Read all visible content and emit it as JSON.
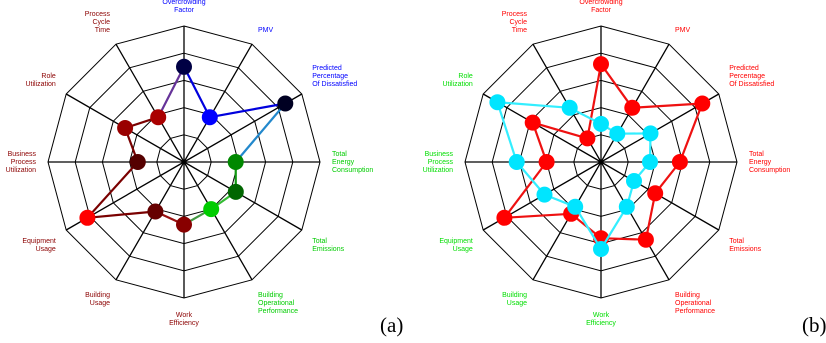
{
  "panels": [
    {
      "panel_label": "(a)",
      "chart_data": {
        "type": "radar",
        "title": "",
        "axes": [
          {
            "label": "Overcrowding Factor",
            "color": "#0000ff"
          },
          {
            "label": "PMV",
            "color": "#0000ff"
          },
          {
            "label": "Predicted Percentage Of Dissatisfied",
            "color": "#0000ff"
          },
          {
            "label": "Total Energy Consumption",
            "color": "#00cc00"
          },
          {
            "label": "Total Emissions",
            "color": "#00cc00"
          },
          {
            "label": "Building Operational Performance",
            "color": "#00cc00"
          },
          {
            "label": "Work Efficiency",
            "color": "#8b0000"
          },
          {
            "label": "Building Usage",
            "color": "#8b0000"
          },
          {
            "label": "Equipment Usage",
            "color": "#8b0000"
          },
          {
            "label": "Business Process Utilization",
            "color": "#8b0000"
          },
          {
            "label": "Role Utilization",
            "color": "#8b0000"
          },
          {
            "label": "Process Cycle Time",
            "color": "#8b0000"
          }
        ],
        "rings": 5,
        "range": [
          0,
          5
        ],
        "grid": true,
        "series": [
          {
            "values": [
              3.5,
              1.9,
              4.3,
              1.9,
              2.2,
              2.0,
              2.3,
              2.1,
              4.1,
              1.7,
              2.5,
              1.9
            ],
            "point_colors": [
              "#000044",
              "#0000ff",
              "#000022",
              "#008800",
              "#006600",
              "#00cc00",
              "#880000",
              "#660000",
              "#ff0000",
              "#550000",
              "#990000",
              "#aa0000"
            ],
            "line_colors": [
              "#0000dd",
              "#0000dd",
              "#2288cc",
              "#119911",
              "#33bb33",
              "#449944",
              "#991111",
              "#7a0000",
              "#7a0000",
              "#7a0000",
              "#7a0000",
              "#663399"
            ]
          }
        ]
      }
    },
    {
      "panel_label": "(b)",
      "chart_data": {
        "type": "radar",
        "title": "",
        "axes": [
          {
            "label": "Overcrowding Factor",
            "color": "#ff0000"
          },
          {
            "label": "PMV",
            "color": "#ff0000"
          },
          {
            "label": "Predicted Percentage Of Dissatisfied",
            "color": "#ff0000"
          },
          {
            "label": "Total Energy Consumption",
            "color": "#ff0000"
          },
          {
            "label": "Total Emissions",
            "color": "#ff0000"
          },
          {
            "label": "Building Operational Performance",
            "color": "#ff0000"
          },
          {
            "label": "Work Efficiency",
            "color": "#00dd00"
          },
          {
            "label": "Building Usage",
            "color": "#00dd00"
          },
          {
            "label": "Equipment Usage",
            "color": "#00dd00"
          },
          {
            "label": "Business Process Utilization",
            "color": "#00dd00"
          },
          {
            "label": "Role Utilization",
            "color": "#00dd00"
          },
          {
            "label": "Process Cycle Time",
            "color": "#ff0000"
          }
        ],
        "rings": 5,
        "range": [
          0,
          5
        ],
        "grid": true,
        "series": [
          {
            "values": [
              3.6,
              2.3,
              4.3,
              2.9,
              2.3,
              3.3,
              2.8,
              2.2,
              4.1,
              2.0,
              2.9,
              1.0
            ],
            "point_colors": [
              "#ff0000"
            ],
            "line_colors": [
              "#ee1111"
            ]
          },
          {
            "values": [
              1.4,
              1.2,
              2.1,
              1.8,
              1.4,
              1.9,
              3.2,
              1.9,
              2.4,
              3.1,
              4.4,
              2.3
            ],
            "point_colors": [
              "#00e5ff"
            ],
            "line_colors": [
              "#33eeff"
            ]
          }
        ]
      }
    }
  ]
}
